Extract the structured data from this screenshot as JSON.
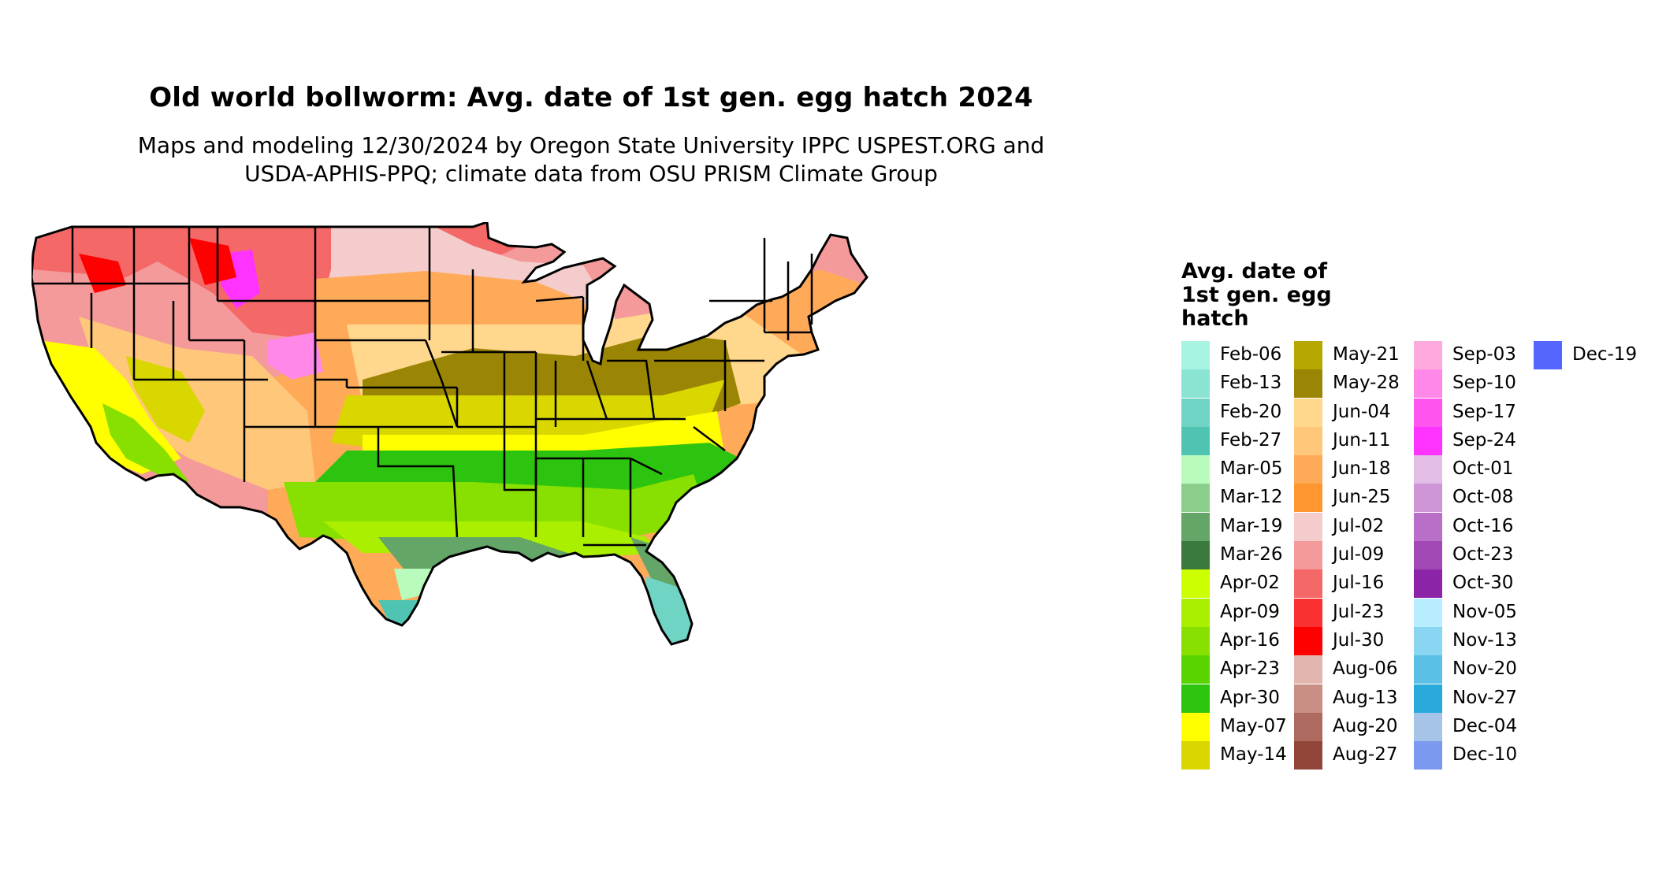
{
  "map": {
    "title": "Old world bollworm: Avg. date of 1st gen. egg hatch 2024",
    "subtitle_line1": "Maps and modeling 12/30/2024 by Oregon State University IPPC USPEST.ORG and",
    "subtitle_line2": "USDA-APHIS-PPQ; climate data from OSU PRISM Climate Group",
    "region": "Contiguous United States",
    "state_boundaries": true,
    "dominant_zones": [
      {
        "region": "Pacific Northwest / Northern Rockies / Northern Plains",
        "legend": "Jul-16"
      },
      {
        "region": "Central Plains / Great Lakes / Northeast",
        "legend": "Jun-18"
      },
      {
        "region": "Ohio Valley / Mid-Atlantic interior",
        "legend": "May-28"
      },
      {
        "region": "Tennessee / Kentucky / Carolinas corridor",
        "legend": "May-07"
      },
      {
        "region": "Southern Plains / Deep South",
        "legend": "Apr-16"
      },
      {
        "region": "Gulf Coast / South Texas",
        "legend": "Mar-19"
      },
      {
        "region": "Southern Florida / Lower Rio Grande",
        "legend": "Feb-20"
      }
    ]
  },
  "legend": {
    "title_line1": "Avg. date of",
    "title_line2": "1st gen. egg",
    "title_line3": "hatch",
    "columns": [
      [
        {
          "label": "Feb-06",
          "color": "#a8f4e2"
        },
        {
          "label": "Feb-13",
          "color": "#8be4d2"
        },
        {
          "label": "Feb-20",
          "color": "#70d4c4"
        },
        {
          "label": "Feb-27",
          "color": "#4fc4b2"
        },
        {
          "label": "Mar-05",
          "color": "#b9fbbd"
        },
        {
          "label": "Mar-12",
          "color": "#8ccf8c"
        },
        {
          "label": "Mar-19",
          "color": "#64a568"
        },
        {
          "label": "Mar-26",
          "color": "#3b7a3f"
        },
        {
          "label": "Apr-02",
          "color": "#ccff00"
        },
        {
          "label": "Apr-09",
          "color": "#aaee00"
        },
        {
          "label": "Apr-16",
          "color": "#88e000"
        },
        {
          "label": "Apr-23",
          "color": "#5ad400"
        },
        {
          "label": "Apr-30",
          "color": "#2dc40f"
        },
        {
          "label": "May-07",
          "color": "#ffff00"
        },
        {
          "label": "May-14",
          "color": "#d9d600"
        }
      ],
      [
        {
          "label": "May-21",
          "color": "#b6a800"
        },
        {
          "label": "May-28",
          "color": "#9b8505"
        },
        {
          "label": "Jun-04",
          "color": "#ffd88e"
        },
        {
          "label": "Jun-11",
          "color": "#ffc779"
        },
        {
          "label": "Jun-18",
          "color": "#ffaa58"
        },
        {
          "label": "Jun-25",
          "color": "#ff962f"
        },
        {
          "label": "Jul-02",
          "color": "#f4cccc"
        },
        {
          "label": "Jul-09",
          "color": "#f49a9a"
        },
        {
          "label": "Jul-16",
          "color": "#f46868"
        },
        {
          "label": "Jul-23",
          "color": "#fb3030"
        },
        {
          "label": "Jul-30",
          "color": "#ff0000"
        },
        {
          "label": "Aug-06",
          "color": "#e2b6ae"
        },
        {
          "label": "Aug-13",
          "color": "#c98f84"
        },
        {
          "label": "Aug-20",
          "color": "#ae6a5e"
        },
        {
          "label": "Aug-27",
          "color": "#92463a"
        }
      ],
      [
        {
          "label": "Sep-03",
          "color": "#ffaade"
        },
        {
          "label": "Sep-10",
          "color": "#ff88e8"
        },
        {
          "label": "Sep-17",
          "color": "#ff55ee"
        },
        {
          "label": "Sep-24",
          "color": "#ff33ff"
        },
        {
          "label": "Oct-01",
          "color": "#e2bde6"
        },
        {
          "label": "Oct-08",
          "color": "#cf95d6"
        },
        {
          "label": "Oct-16",
          "color": "#b96ec7"
        },
        {
          "label": "Oct-23",
          "color": "#a349b6"
        },
        {
          "label": "Oct-30",
          "color": "#8c24a8"
        },
        {
          "label": "Nov-05",
          "color": "#b8ecff"
        },
        {
          "label": "Nov-13",
          "color": "#8ad6f2"
        },
        {
          "label": "Nov-20",
          "color": "#5cc0e6"
        },
        {
          "label": "Nov-27",
          "color": "#2aa9dd"
        },
        {
          "label": "Dec-04",
          "color": "#a6c4e8"
        },
        {
          "label": "Dec-10",
          "color": "#7b99ee"
        }
      ],
      [
        {
          "label": "Dec-19",
          "color": "#5566ff"
        }
      ]
    ]
  }
}
